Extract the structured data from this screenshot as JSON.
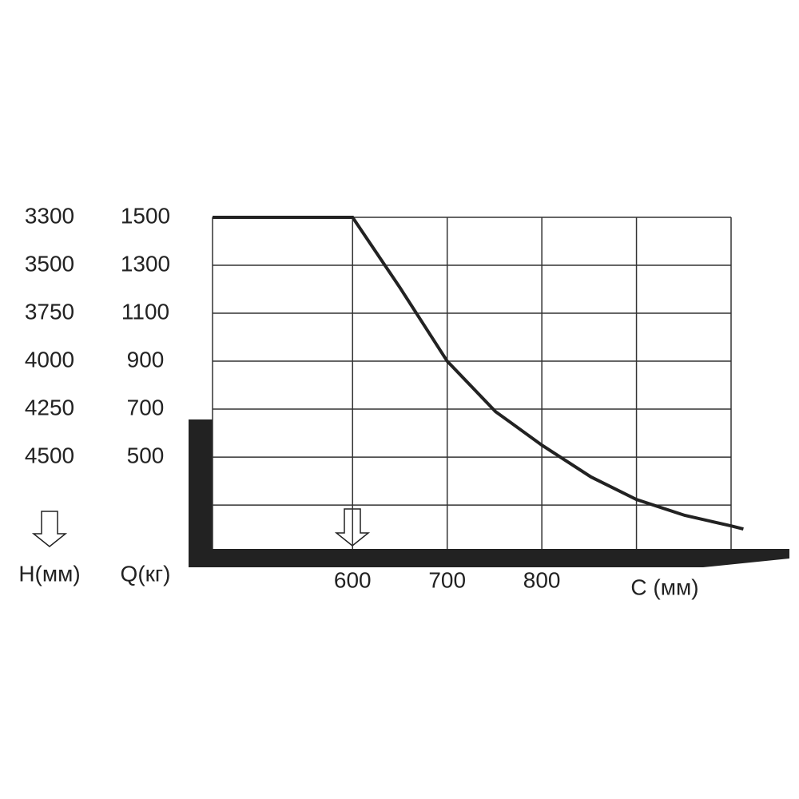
{
  "chart_data": {
    "type": "line",
    "x": [
      452,
      600,
      650,
      700,
      751,
      800,
      852,
      900,
      951,
      1000,
      1013
    ],
    "series": [
      {
        "color": "#222222",
        "values": [
          1500,
          1500,
          1207,
          900,
          690,
          550,
          417,
          323,
          257,
          213,
          200
        ]
      }
    ],
    "xlim": [
      452,
      1000
    ],
    "ylim": [
      117,
      1500
    ],
    "xticks": [
      600,
      700,
      800
    ],
    "xgrid": [
      600,
      700,
      800,
      900,
      1000
    ],
    "yticks": [
      1500,
      1300,
      1100,
      900,
      700,
      500
    ],
    "ygrid": [
      1500,
      1300,
      1100,
      900,
      700,
      500,
      300
    ],
    "h_labels": [
      3300,
      3500,
      3750,
      4000,
      4250,
      4500
    ],
    "h_axis_label": "H(мм)",
    "q_axis_label": "Q(кг)",
    "x_axis_label": "C (мм)",
    "grid": true
  }
}
